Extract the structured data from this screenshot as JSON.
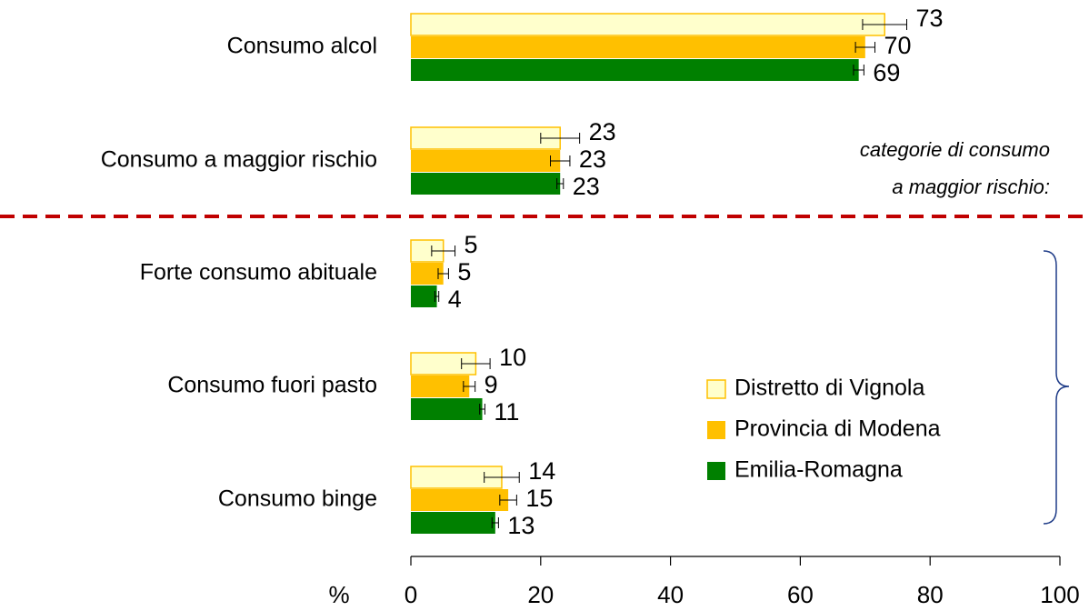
{
  "chart_data": {
    "type": "bar",
    "orientation": "horizontal",
    "categories": [
      "Consumo alcol",
      "Consumo a maggior rischio",
      "Forte consumo abituale",
      "Consumo fuori pasto",
      "Consumo binge"
    ],
    "series": [
      {
        "name": "Distretto di Vignola",
        "color": "#ffffcc",
        "edge": "#ffc000",
        "values": [
          73,
          23,
          5,
          10,
          14
        ],
        "errors": [
          3.4,
          3,
          1.8,
          2.2,
          2.7
        ]
      },
      {
        "name": "Provincia di Modena",
        "color": "#ffc000",
        "values": [
          70,
          23,
          5,
          9,
          15
        ],
        "errors": [
          1.5,
          1.5,
          0.8,
          0.9,
          1.3
        ]
      },
      {
        "name": "Emilia-Romagna",
        "color": "#008000",
        "values": [
          69,
          23,
          4,
          11,
          13
        ],
        "errors": [
          0.8,
          0.5,
          0.3,
          0.4,
          0.5
        ]
      }
    ],
    "x_label": "%",
    "xlim": [
      0,
      100
    ],
    "xticks": [
      0,
      20,
      40,
      60,
      80,
      100
    ],
    "annotation": [
      "categorie di consumo",
      "a maggior rischio:"
    ]
  }
}
